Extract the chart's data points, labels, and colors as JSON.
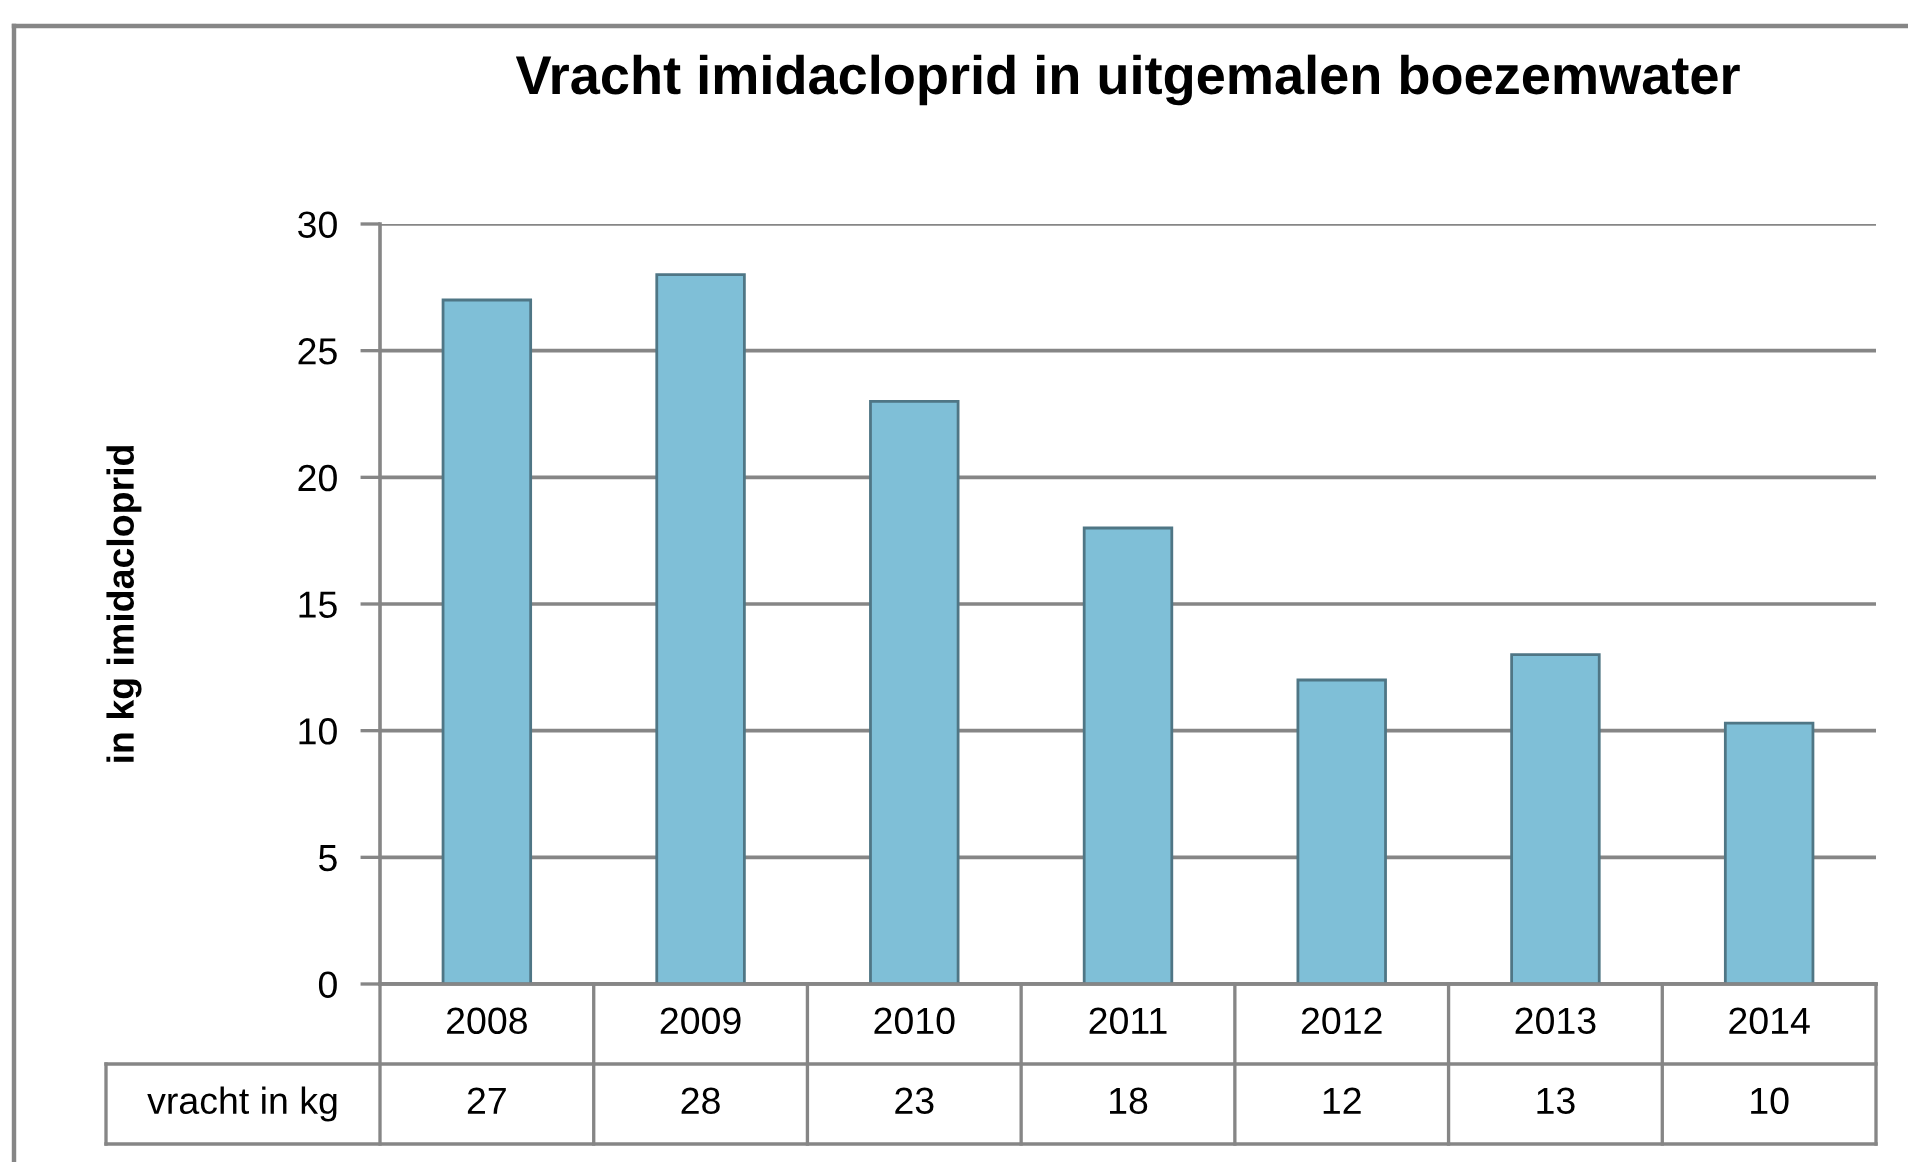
{
  "chart_data": {
    "type": "bar",
    "title": "Vracht imidacloprid in uitgemalen boezemwater",
    "ylabel": "in kg imidacloprid",
    "categories": [
      "2008",
      "2009",
      "2010",
      "2011",
      "2012",
      "2013",
      "2014"
    ],
    "series": [
      {
        "name": "vracht in kg",
        "color": "#7fbfd7",
        "values": [
          27,
          28,
          23,
          18,
          12,
          13,
          10.3
        ],
        "value_labels": [
          "27",
          "28",
          "23",
          "18",
          "12",
          "13",
          "10"
        ]
      }
    ],
    "ylim": [
      0,
      30
    ],
    "yticks": [
      0,
      5,
      10,
      15,
      20,
      25,
      30
    ],
    "grid": "y"
  }
}
